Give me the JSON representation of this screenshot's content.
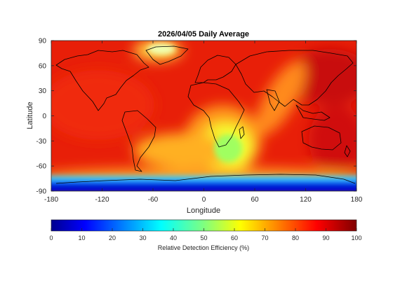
{
  "chart_data": {
    "type": "heatmap",
    "title": "2026/04/05 Daily Average",
    "xlabel": "Longitude",
    "ylabel": "Latitude",
    "xlim": [
      -180,
      180
    ],
    "ylim": [
      -90,
      90
    ],
    "x_ticks": [
      -180,
      -120,
      -60,
      0,
      60,
      120,
      180
    ],
    "y_ticks": [
      90,
      60,
      30,
      0,
      -30,
      -60,
      -90
    ],
    "x_tick_labels": [
      "-180",
      "-120",
      "-60",
      "0",
      "60",
      "120",
      "180"
    ],
    "y_tick_labels": [
      "90",
      "60",
      "30",
      "0",
      "-30",
      "-60",
      "-90"
    ],
    "colormap": "jet",
    "colorbar": {
      "label": "Relative Detection Efficiency (%)",
      "range": [
        0,
        100
      ],
      "ticks": [
        0,
        10,
        20,
        30,
        40,
        50,
        60,
        70,
        80,
        90,
        100
      ],
      "tick_labels": [
        "0",
        "10",
        "20",
        "30",
        "40",
        "50",
        "60",
        "70",
        "80",
        "90",
        "100"
      ]
    },
    "overlay": "coastlines",
    "features": [
      {
        "region": "global background",
        "value": 88
      },
      {
        "region": "southern Africa / South Atlantic",
        "value": 50
      },
      {
        "region": "Indian Ocean to central Asia band",
        "value": 72
      },
      {
        "region": "Greenland",
        "value": 55
      },
      {
        "region": "Southern Ocean",
        "value": 35
      },
      {
        "region": "Antarctica",
        "value": 5
      }
    ]
  },
  "colors": {
    "jet_low": "#00008f",
    "jet_high": "#800000",
    "coastline": "#000000"
  }
}
